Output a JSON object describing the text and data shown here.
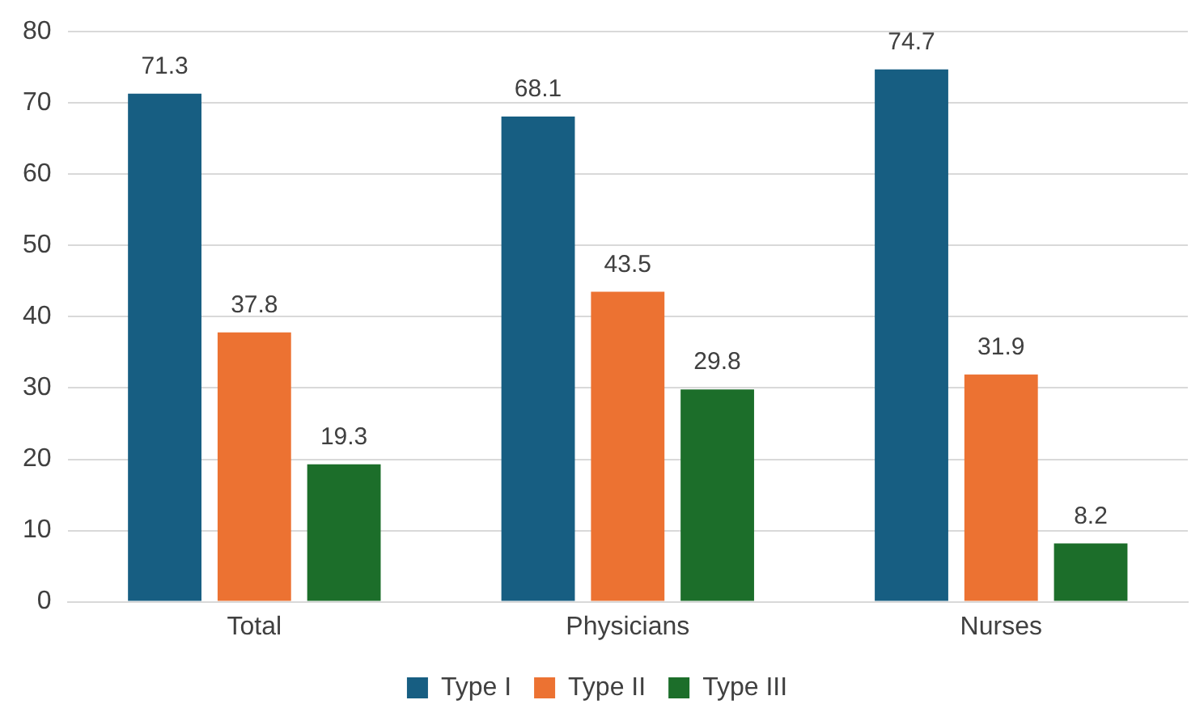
{
  "chart_data": {
    "type": "bar",
    "categories": [
      "Total",
      "Physicians",
      "Nurses"
    ],
    "series": [
      {
        "name": "Type I",
        "color": "#175e82",
        "values": [
          71.3,
          68.1,
          74.7
        ]
      },
      {
        "name": "Type II",
        "color": "#ec7232",
        "values": [
          37.8,
          43.5,
          31.9
        ]
      },
      {
        "name": "Type III",
        "color": "#1c6e2a",
        "values": [
          19.3,
          29.8,
          8.2
        ]
      }
    ],
    "ylim": [
      0,
      80
    ],
    "yticks": [
      0,
      10,
      20,
      30,
      40,
      50,
      60,
      70,
      80
    ],
    "grid": "y",
    "legend": "bottom",
    "data_labels": true
  }
}
